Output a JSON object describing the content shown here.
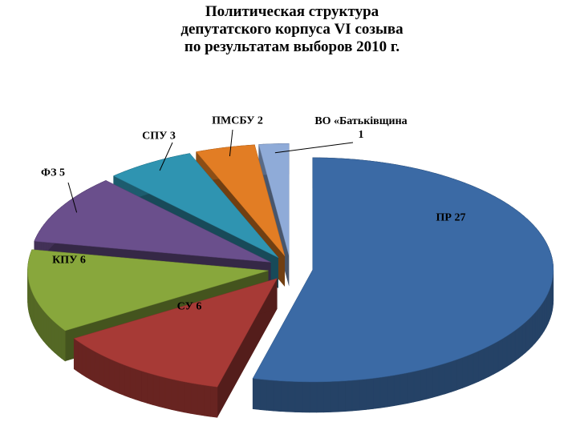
{
  "chart_data": {
    "type": "pie",
    "title": "Политическая структура\nдепутатского корпуса VI созыва\nпо результатам  выборов 2010 г.",
    "categories": [
      "ПР 27",
      "СУ 6",
      "КПУ 6",
      "ФЗ 5",
      "СПУ 3",
      "ПМСБУ 2",
      "ВО «Батьківщина 1"
    ],
    "values": [
      27,
      6,
      6,
      5,
      3,
      2,
      1
    ],
    "colors": [
      "#3b6aa5",
      "#a73a36",
      "#88a73c",
      "#6a4f8c",
      "#2f94b1",
      "#e27d24",
      "#8fabd8"
    ]
  }
}
